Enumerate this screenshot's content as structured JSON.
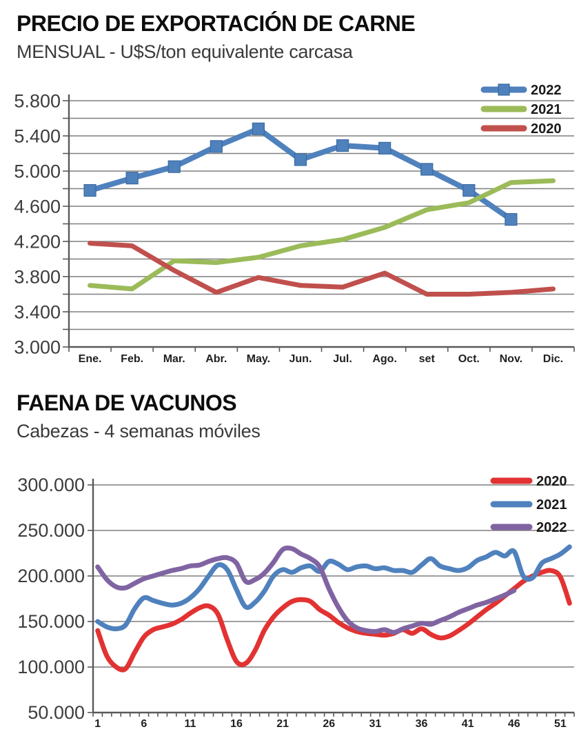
{
  "chart_data": [
    {
      "type": "line",
      "title": "PRECIO DE EXPORTACIÓN DE CARNE",
      "subtitle": "MENSUAL - U$S/ton equivalente carcasa",
      "xlabel": "",
      "ylabel": "",
      "categories": [
        "Ene.",
        "Feb.",
        "Mar.",
        "Abr.",
        "May.",
        "Jun.",
        "Jul.",
        "Ago.",
        "set",
        "Oct.",
        "Nov.",
        "Dic."
      ],
      "series": [
        {
          "name": "2022",
          "color": "#4f81bd",
          "marker": "square",
          "marker_border": "#3a6a9f",
          "values": [
            4780,
            4920,
            5050,
            5280,
            5480,
            5130,
            5290,
            5260,
            5020,
            4780,
            4450,
            null
          ]
        },
        {
          "name": "2021",
          "color": "#9bbb59",
          "marker": "none",
          "values": [
            3700,
            3660,
            3980,
            3960,
            4020,
            4150,
            4220,
            4360,
            4560,
            4640,
            4870,
            4890
          ]
        },
        {
          "name": "2020",
          "color": "#c0504d",
          "marker": "none",
          "values": [
            4180,
            4150,
            3870,
            3620,
            3790,
            3700,
            3680,
            3840,
            3600,
            3600,
            3620,
            3660
          ]
        }
      ],
      "ylim": [
        3000,
        5800
      ],
      "y_grid_step": 200,
      "y_label_values": [
        5800,
        5400,
        5000,
        4600,
        4200,
        3800,
        3400,
        3000
      ],
      "y_tick_labels": [
        "5.800",
        "5.400",
        "5.000",
        "4.600",
        "4.200",
        "3.800",
        "3.400",
        "3.000"
      ],
      "grid": true,
      "smooth": false,
      "legend_position": "top-right"
    },
    {
      "type": "line",
      "title": "FAENA DE VACUNOS",
      "subtitle": "Cabezas - 4 semanas móviles",
      "xlabel": "",
      "ylabel": "",
      "x": [
        1,
        2,
        3,
        4,
        5,
        6,
        7,
        8,
        9,
        10,
        11,
        12,
        13,
        14,
        15,
        16,
        17,
        18,
        19,
        20,
        21,
        22,
        23,
        24,
        25,
        26,
        27,
        28,
        29,
        30,
        31,
        32,
        33,
        34,
        35,
        36,
        37,
        38,
        39,
        40,
        41,
        42,
        43,
        44,
        45,
        46,
        47,
        48,
        49,
        50,
        51,
        52
      ],
      "x_tick_values": [
        1,
        6,
        11,
        16,
        21,
        26,
        31,
        36,
        41,
        46,
        51
      ],
      "x_tick_labels": [
        "1",
        "6",
        "11",
        "16",
        "21",
        "26",
        "31",
        "36",
        "41",
        "46",
        "51"
      ],
      "series": [
        {
          "name": "2020",
          "color": "#e23232",
          "marker": "none",
          "values": [
            140000,
            112000,
            100000,
            98000,
            116000,
            133000,
            141000,
            144000,
            147000,
            152000,
            159000,
            165000,
            167000,
            158000,
            130000,
            106000,
            104000,
            118000,
            140000,
            155000,
            165000,
            172000,
            174000,
            172000,
            163000,
            157000,
            149000,
            143000,
            139000,
            137000,
            136000,
            135000,
            137000,
            141000,
            137000,
            142000,
            136000,
            132000,
            134000,
            140000,
            147000,
            155000,
            163000,
            170000,
            178000,
            186000,
            194000,
            200000,
            204000,
            206000,
            199000,
            170000
          ]
        },
        {
          "name": "2021",
          "color": "#4f81bd",
          "marker": "none",
          "values": [
            150000,
            144000,
            142000,
            146000,
            164000,
            176000,
            173000,
            170000,
            168000,
            170000,
            176000,
            186000,
            200000,
            212000,
            207000,
            185000,
            166000,
            171000,
            183000,
            200000,
            207000,
            204000,
            209000,
            211000,
            205000,
            216000,
            213000,
            207000,
            210000,
            211000,
            208000,
            209000,
            206000,
            206000,
            204000,
            212000,
            219000,
            211000,
            208000,
            206000,
            209000,
            217000,
            221000,
            226000,
            222000,
            227000,
            200000,
            198000,
            214000,
            219000,
            224000,
            232000
          ]
        },
        {
          "name": "2022",
          "color": "#8064a2",
          "marker": "none",
          "values": [
            210000,
            196000,
            188000,
            187000,
            192000,
            197000,
            200000,
            203000,
            206000,
            208000,
            211000,
            212000,
            216000,
            219000,
            220000,
            214000,
            194000,
            196000,
            203000,
            215000,
            229000,
            230000,
            224000,
            219000,
            210000,
            186000,
            166000,
            151000,
            143000,
            140000,
            139000,
            141000,
            138000,
            142000,
            145000,
            148000,
            147000,
            151000,
            155000,
            160000,
            164000,
            168000,
            171000,
            175000,
            179000,
            184000
          ]
        }
      ],
      "ylim": [
        50000,
        300000
      ],
      "y_grid_step": 50000,
      "y_label_values": [
        300000,
        250000,
        200000,
        150000,
        100000,
        50000
      ],
      "y_tick_labels": [
        "300.000",
        "250.000",
        "200.000",
        "150.000",
        "100.000",
        "50.000"
      ],
      "grid": true,
      "smooth": true,
      "legend_position": "top-right"
    }
  ]
}
